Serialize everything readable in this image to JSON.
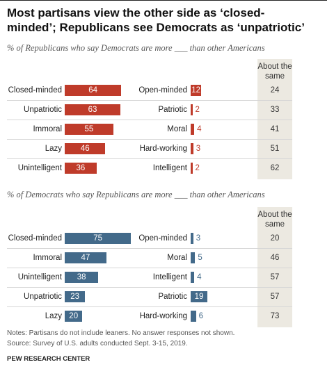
{
  "title": "Most partisans view the other side as ‘closed-minded’; Republicans see Democrats as ‘unpatriotic’",
  "chart_data": [
    {
      "type": "bar",
      "subtitle": "% of Republicans who say Democrats are more ___ than other Americans",
      "color": "#bf3b2a",
      "categories": [
        "Closed-minded",
        "Unpatriotic",
        "Immoral",
        "Lazy",
        "Unintelligent"
      ],
      "values": [
        64,
        63,
        55,
        46,
        36
      ],
      "opposite_categories": [
        "Open-minded",
        "Patriotic",
        "Moral",
        "Hard-working",
        "Intelligent"
      ],
      "opposite_values": [
        12,
        2,
        4,
        3,
        2
      ],
      "same_label": "About the same",
      "same_values": [
        24,
        33,
        41,
        51,
        62
      ]
    },
    {
      "type": "bar",
      "subtitle": "% of Democrats who say Republicans are more ___ than other Americans",
      "color": "#436a8a",
      "categories": [
        "Closed-minded",
        "Immoral",
        "Unintelligent",
        "Unpatriotic",
        "Lazy"
      ],
      "values": [
        75,
        47,
        38,
        23,
        20
      ],
      "opposite_categories": [
        "Open-minded",
        "Moral",
        "Intelligent",
        "Patriotic",
        "Hard-working"
      ],
      "opposite_values": [
        3,
        5,
        4,
        19,
        6
      ],
      "same_label": "About the same",
      "same_values": [
        20,
        46,
        57,
        57,
        73
      ]
    }
  ],
  "notes": "Notes: Partisans do not include leaners. No answer responses not shown.",
  "source": "Source: Survey of U.S. adults conducted Sept. 3-15, 2019.",
  "footer": "PEW RESEARCH CENTER"
}
